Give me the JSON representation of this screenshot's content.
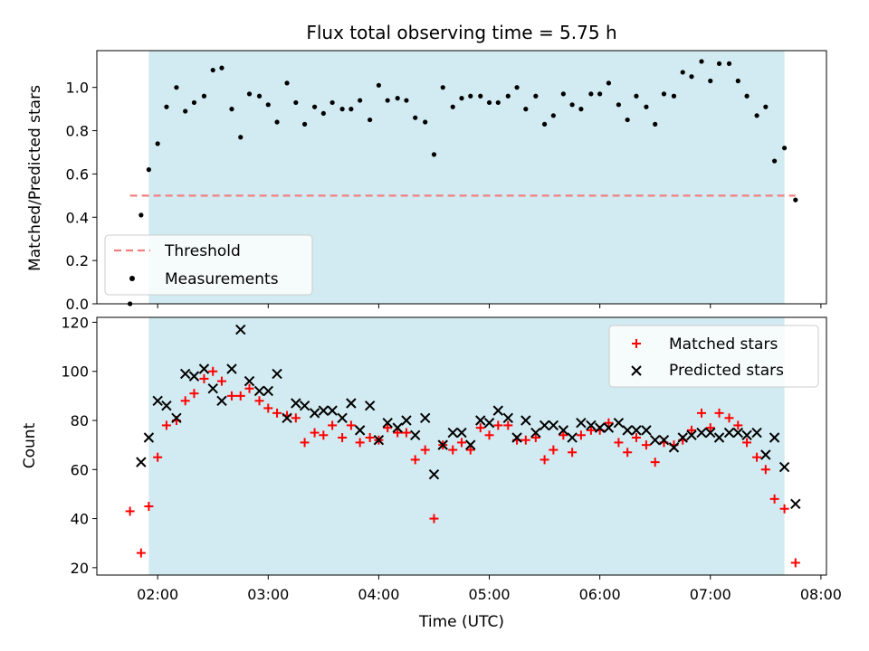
{
  "title": "Flux total observing time = 5.75 h",
  "xlabel": "Time (UTC)",
  "x_ticks": [
    "02:00",
    "03:00",
    "04:00",
    "05:00",
    "06:00",
    "07:00",
    "08:00"
  ],
  "x_tick_hours": [
    2,
    3,
    4,
    5,
    6,
    7,
    8
  ],
  "xlim": [
    1.45,
    8.05
  ],
  "observing_window": [
    1.92,
    7.67
  ],
  "colors": {
    "window": "#add8e6",
    "threshold": "#f08080",
    "measurements": "#000000",
    "matched": "#ff0000",
    "predicted": "#000000"
  },
  "chart_data": [
    {
      "type": "scatter",
      "ylabel": "Matched/Predicted stars",
      "ylim": [
        0,
        1.17
      ],
      "y_ticks": [
        "0.0",
        "0.2",
        "0.4",
        "0.6",
        "0.8",
        "1.0"
      ],
      "y_tick_values": [
        0,
        0.2,
        0.4,
        0.6,
        0.8,
        1.0
      ],
      "grid": false,
      "legend": "lower-left",
      "threshold": {
        "name": "Threshold",
        "value": 0.5,
        "x_range": [
          1.75,
          7.77
        ]
      },
      "series": [
        {
          "name": "Measurements",
          "x": [
            1.75,
            1.85,
            1.92,
            2.0,
            2.08,
            2.17,
            2.25,
            2.33,
            2.42,
            2.5,
            2.58,
            2.67,
            2.75,
            2.83,
            2.92,
            3.0,
            3.08,
            3.17,
            3.25,
            3.33,
            3.42,
            3.5,
            3.58,
            3.67,
            3.75,
            3.83,
            3.92,
            4.0,
            4.08,
            4.17,
            4.25,
            4.33,
            4.42,
            4.5,
            4.58,
            4.67,
            4.75,
            4.83,
            4.92,
            5.0,
            5.08,
            5.17,
            5.25,
            5.33,
            5.42,
            5.5,
            5.58,
            5.67,
            5.75,
            5.83,
            5.92,
            6.0,
            6.08,
            6.17,
            6.25,
            6.33,
            6.42,
            6.5,
            6.58,
            6.67,
            6.75,
            6.83,
            6.92,
            7.0,
            7.08,
            7.17,
            7.25,
            7.33,
            7.42,
            7.5,
            7.58,
            7.67,
            7.77
          ],
          "y": [
            0.0,
            0.41,
            0.62,
            0.74,
            0.91,
            1.0,
            0.89,
            0.93,
            0.96,
            1.08,
            1.09,
            0.9,
            0.77,
            0.97,
            0.96,
            0.92,
            0.84,
            1.02,
            0.93,
            0.83,
            0.91,
            0.88,
            0.93,
            0.9,
            0.9,
            0.94,
            0.85,
            1.01,
            0.94,
            0.95,
            0.94,
            0.86,
            0.84,
            0.69,
            1.0,
            0.91,
            0.95,
            0.96,
            0.96,
            0.93,
            0.93,
            0.96,
            1.0,
            0.9,
            0.96,
            0.83,
            0.87,
            0.97,
            0.92,
            0.9,
            0.97,
            0.97,
            1.02,
            0.92,
            0.85,
            0.96,
            0.91,
            0.83,
            0.97,
            0.96,
            1.07,
            1.05,
            1.12,
            1.03,
            1.11,
            1.11,
            1.03,
            0.96,
            0.87,
            0.91,
            0.66,
            0.72,
            0.48
          ]
        }
      ]
    },
    {
      "type": "scatter",
      "ylabel": "Count",
      "ylim": [
        17,
        122
      ],
      "y_ticks": [
        "20",
        "40",
        "60",
        "80",
        "100",
        "120"
      ],
      "y_tick_values": [
        20,
        40,
        60,
        80,
        100,
        120
      ],
      "grid": false,
      "legend": "upper-right",
      "x": [
        1.75,
        1.85,
        1.92,
        2.0,
        2.08,
        2.17,
        2.25,
        2.33,
        2.42,
        2.5,
        2.58,
        2.67,
        2.75,
        2.83,
        2.92,
        3.0,
        3.08,
        3.17,
        3.25,
        3.33,
        3.42,
        3.5,
        3.58,
        3.67,
        3.75,
        3.83,
        3.92,
        4.0,
        4.08,
        4.17,
        4.25,
        4.33,
        4.42,
        4.5,
        4.58,
        4.67,
        4.75,
        4.83,
        4.92,
        5.0,
        5.08,
        5.17,
        5.25,
        5.33,
        5.42,
        5.5,
        5.58,
        5.67,
        5.75,
        5.83,
        5.92,
        6.0,
        6.08,
        6.17,
        6.25,
        6.33,
        6.42,
        6.5,
        6.58,
        6.67,
        6.75,
        6.83,
        6.92,
        7.0,
        7.08,
        7.17,
        7.25,
        7.33,
        7.42,
        7.5,
        7.58,
        7.67,
        7.77
      ],
      "series": [
        {
          "name": "Matched stars",
          "marker": "plus",
          "values": [
            43,
            26,
            45,
            65,
            78,
            80,
            88,
            91,
            97,
            100,
            96,
            90,
            90,
            93,
            88,
            85,
            83,
            82,
            81,
            71,
            75,
            74,
            78,
            73,
            78,
            71,
            73,
            72,
            77,
            75,
            75,
            64,
            68,
            40,
            70,
            68,
            71,
            68,
            77,
            74,
            78,
            78,
            72,
            72,
            73,
            64,
            68,
            74,
            67,
            74,
            76,
            76,
            79,
            71,
            67,
            73,
            70,
            63,
            71,
            70,
            72,
            76,
            83,
            77,
            83,
            81,
            78,
            71,
            65,
            60,
            48,
            44,
            22
          ]
        },
        {
          "name": "Predicted stars",
          "marker": "x",
          "values": [
            null,
            63,
            73,
            88,
            86,
            81,
            99,
            98,
            101,
            93,
            88,
            101,
            117,
            96,
            92,
            92,
            99,
            81,
            87,
            86,
            83,
            84,
            84,
            81,
            87,
            76,
            86,
            72,
            79,
            77,
            80,
            74,
            81,
            58,
            70,
            75,
            75,
            70,
            80,
            79,
            84,
            81,
            73,
            80,
            75,
            78,
            78,
            76,
            73,
            79,
            78,
            77,
            77,
            79,
            76,
            76,
            76,
            72,
            72,
            69,
            73,
            74,
            75,
            75,
            73,
            75,
            75,
            74,
            75,
            66,
            73,
            61,
            46
          ]
        }
      ]
    }
  ]
}
